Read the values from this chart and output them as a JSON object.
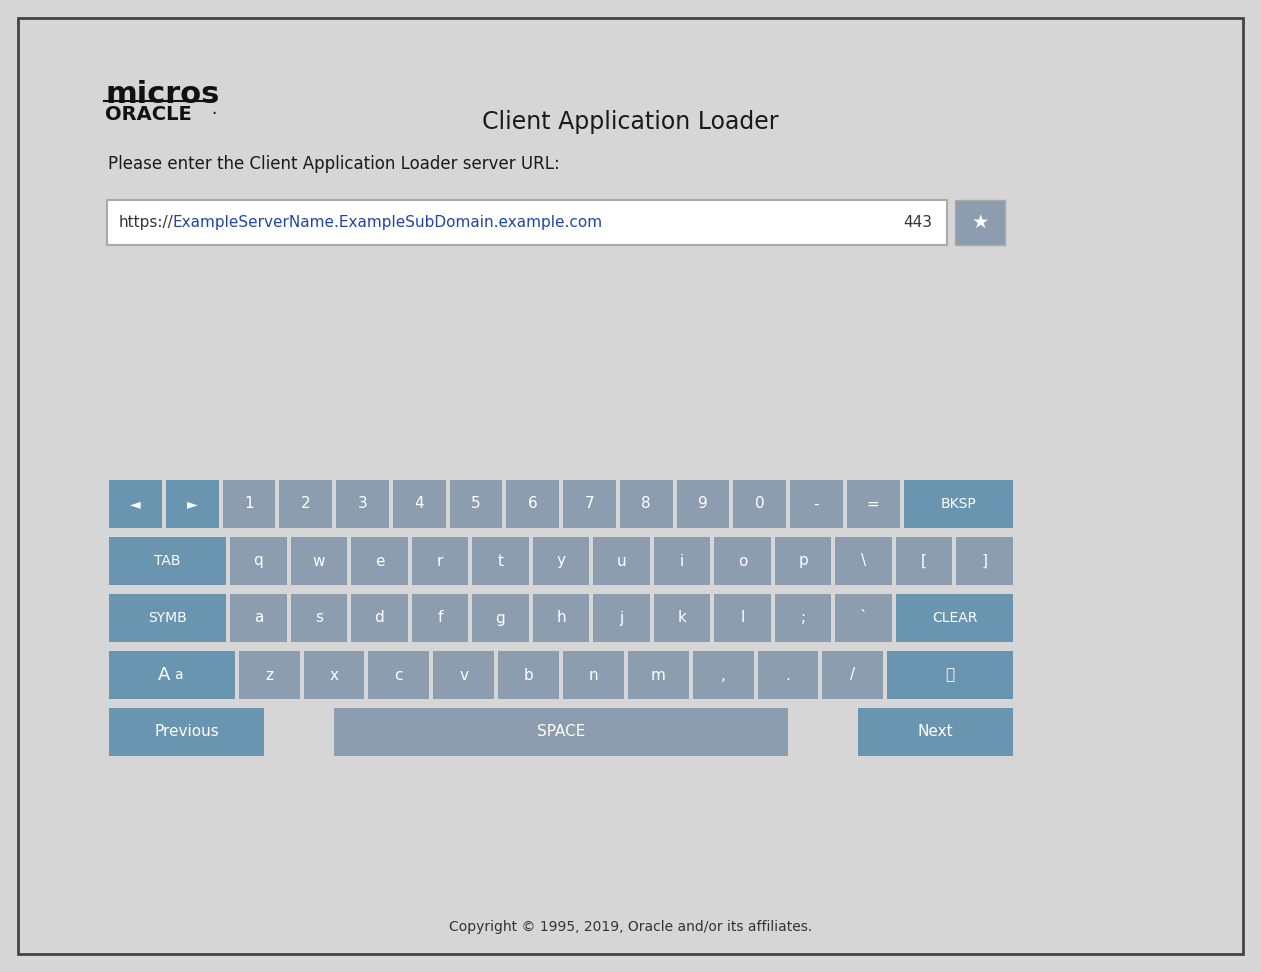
{
  "bg_color": "#d6d6d6",
  "border_color": "#555555",
  "title": "Client Application Loader",
  "logo_micros": "micros",
  "logo_oracle": "ORACLE·",
  "url_label": "Please enter the Client Application Loader server URL:",
  "url_text": "https://ExampleServerName.ExampleSubDomain.example.com",
  "url_port": "443",
  "input_bg": "#ffffff",
  "key_bg_gray": "#8c9daf",
  "key_bg_blue": "#6a95b0",
  "key_text_color": "#ffffff",
  "copyright": "Copyright © 1995, 2019, Oracle and/or its affiliates.",
  "fig_w": 12.61,
  "fig_h": 9.72,
  "dpi": 100
}
